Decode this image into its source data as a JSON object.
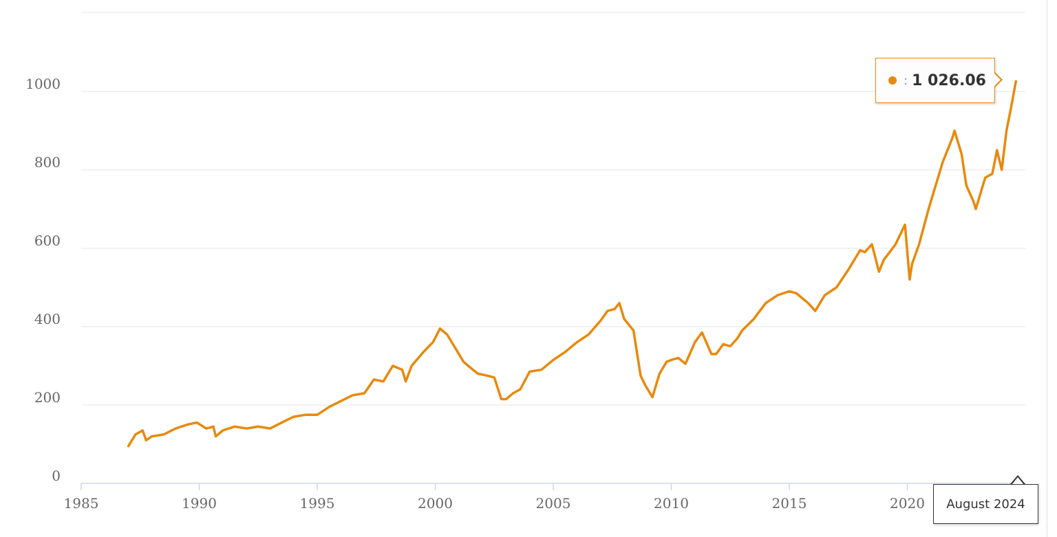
{
  "chart_data": {
    "type": "line",
    "title": "",
    "xlabel": "",
    "ylabel": "",
    "xlim": [
      1985,
      2024.75
    ],
    "ylim": [
      0,
      1000
    ],
    "x_ticks": [
      "1985",
      "1990",
      "1995",
      "2000",
      "2005",
      "2010",
      "2015",
      "2020"
    ],
    "y_ticks": [
      "0",
      "200",
      "400",
      "600",
      "800",
      "1000"
    ],
    "grid": "horizontal",
    "line_color": "#e8890c",
    "series": [
      {
        "name": "",
        "x": [
          1987.0,
          1987.3,
          1987.6,
          1987.75,
          1988.0,
          1988.5,
          1989.0,
          1989.5,
          1989.9,
          1990.3,
          1990.6,
          1990.7,
          1991.0,
          1991.5,
          1992.0,
          1992.5,
          1993.0,
          1993.5,
          1994.0,
          1994.5,
          1995.0,
          1995.5,
          1996.0,
          1996.5,
          1997.0,
          1997.4,
          1997.8,
          1998.2,
          1998.6,
          1998.75,
          1999.0,
          1999.5,
          1999.9,
          2000.2,
          2000.5,
          2000.9,
          2001.2,
          2001.5,
          2001.8,
          2002.2,
          2002.5,
          2002.8,
          2003.0,
          2003.3,
          2003.6,
          2004.0,
          2004.5,
          2005.0,
          2005.5,
          2006.0,
          2006.5,
          2007.0,
          2007.3,
          2007.6,
          2007.8,
          2008.0,
          2008.4,
          2008.7,
          2008.9,
          2009.2,
          2009.5,
          2009.8,
          2010.0,
          2010.3,
          2010.6,
          2011.0,
          2011.3,
          2011.7,
          2011.9,
          2012.2,
          2012.5,
          2012.8,
          2013.0,
          2013.5,
          2014.0,
          2014.5,
          2015.0,
          2015.3,
          2015.6,
          2015.8,
          2016.1,
          2016.5,
          2017.0,
          2017.5,
          2018.0,
          2018.2,
          2018.5,
          2018.8,
          2019.0,
          2019.5,
          2019.9,
          2020.1,
          2020.2,
          2020.5,
          2020.9,
          2021.1,
          2021.5,
          2021.9,
          2022.0,
          2022.3,
          2022.5,
          2022.8,
          2022.9,
          2023.1,
          2023.3,
          2023.6,
          2023.8,
          2024.0,
          2024.2,
          2024.4,
          2024.6
        ],
        "values": [
          95,
          125,
          135,
          110,
          120,
          125,
          140,
          150,
          155,
          140,
          145,
          120,
          135,
          145,
          140,
          145,
          140,
          155,
          170,
          175,
          175,
          195,
          210,
          225,
          230,
          265,
          260,
          300,
          290,
          260,
          300,
          335,
          360,
          395,
          380,
          340,
          310,
          295,
          280,
          275,
          270,
          215,
          215,
          230,
          240,
          285,
          290,
          315,
          335,
          360,
          380,
          415,
          440,
          445,
          460,
          420,
          390,
          275,
          250,
          220,
          280,
          310,
          315,
          320,
          305,
          360,
          385,
          330,
          330,
          355,
          350,
          370,
          390,
          420,
          460,
          480,
          490,
          485,
          470,
          460,
          440,
          480,
          500,
          545,
          595,
          590,
          610,
          540,
          570,
          610,
          660,
          520,
          560,
          610,
          700,
          740,
          820,
          880,
          900,
          840,
          760,
          720,
          700,
          740,
          780,
          790,
          850,
          800,
          900,
          960,
          1026
        ]
      }
    ],
    "tooltip": {
      "value": "1 026.06",
      "x_label": "August 2024"
    }
  }
}
